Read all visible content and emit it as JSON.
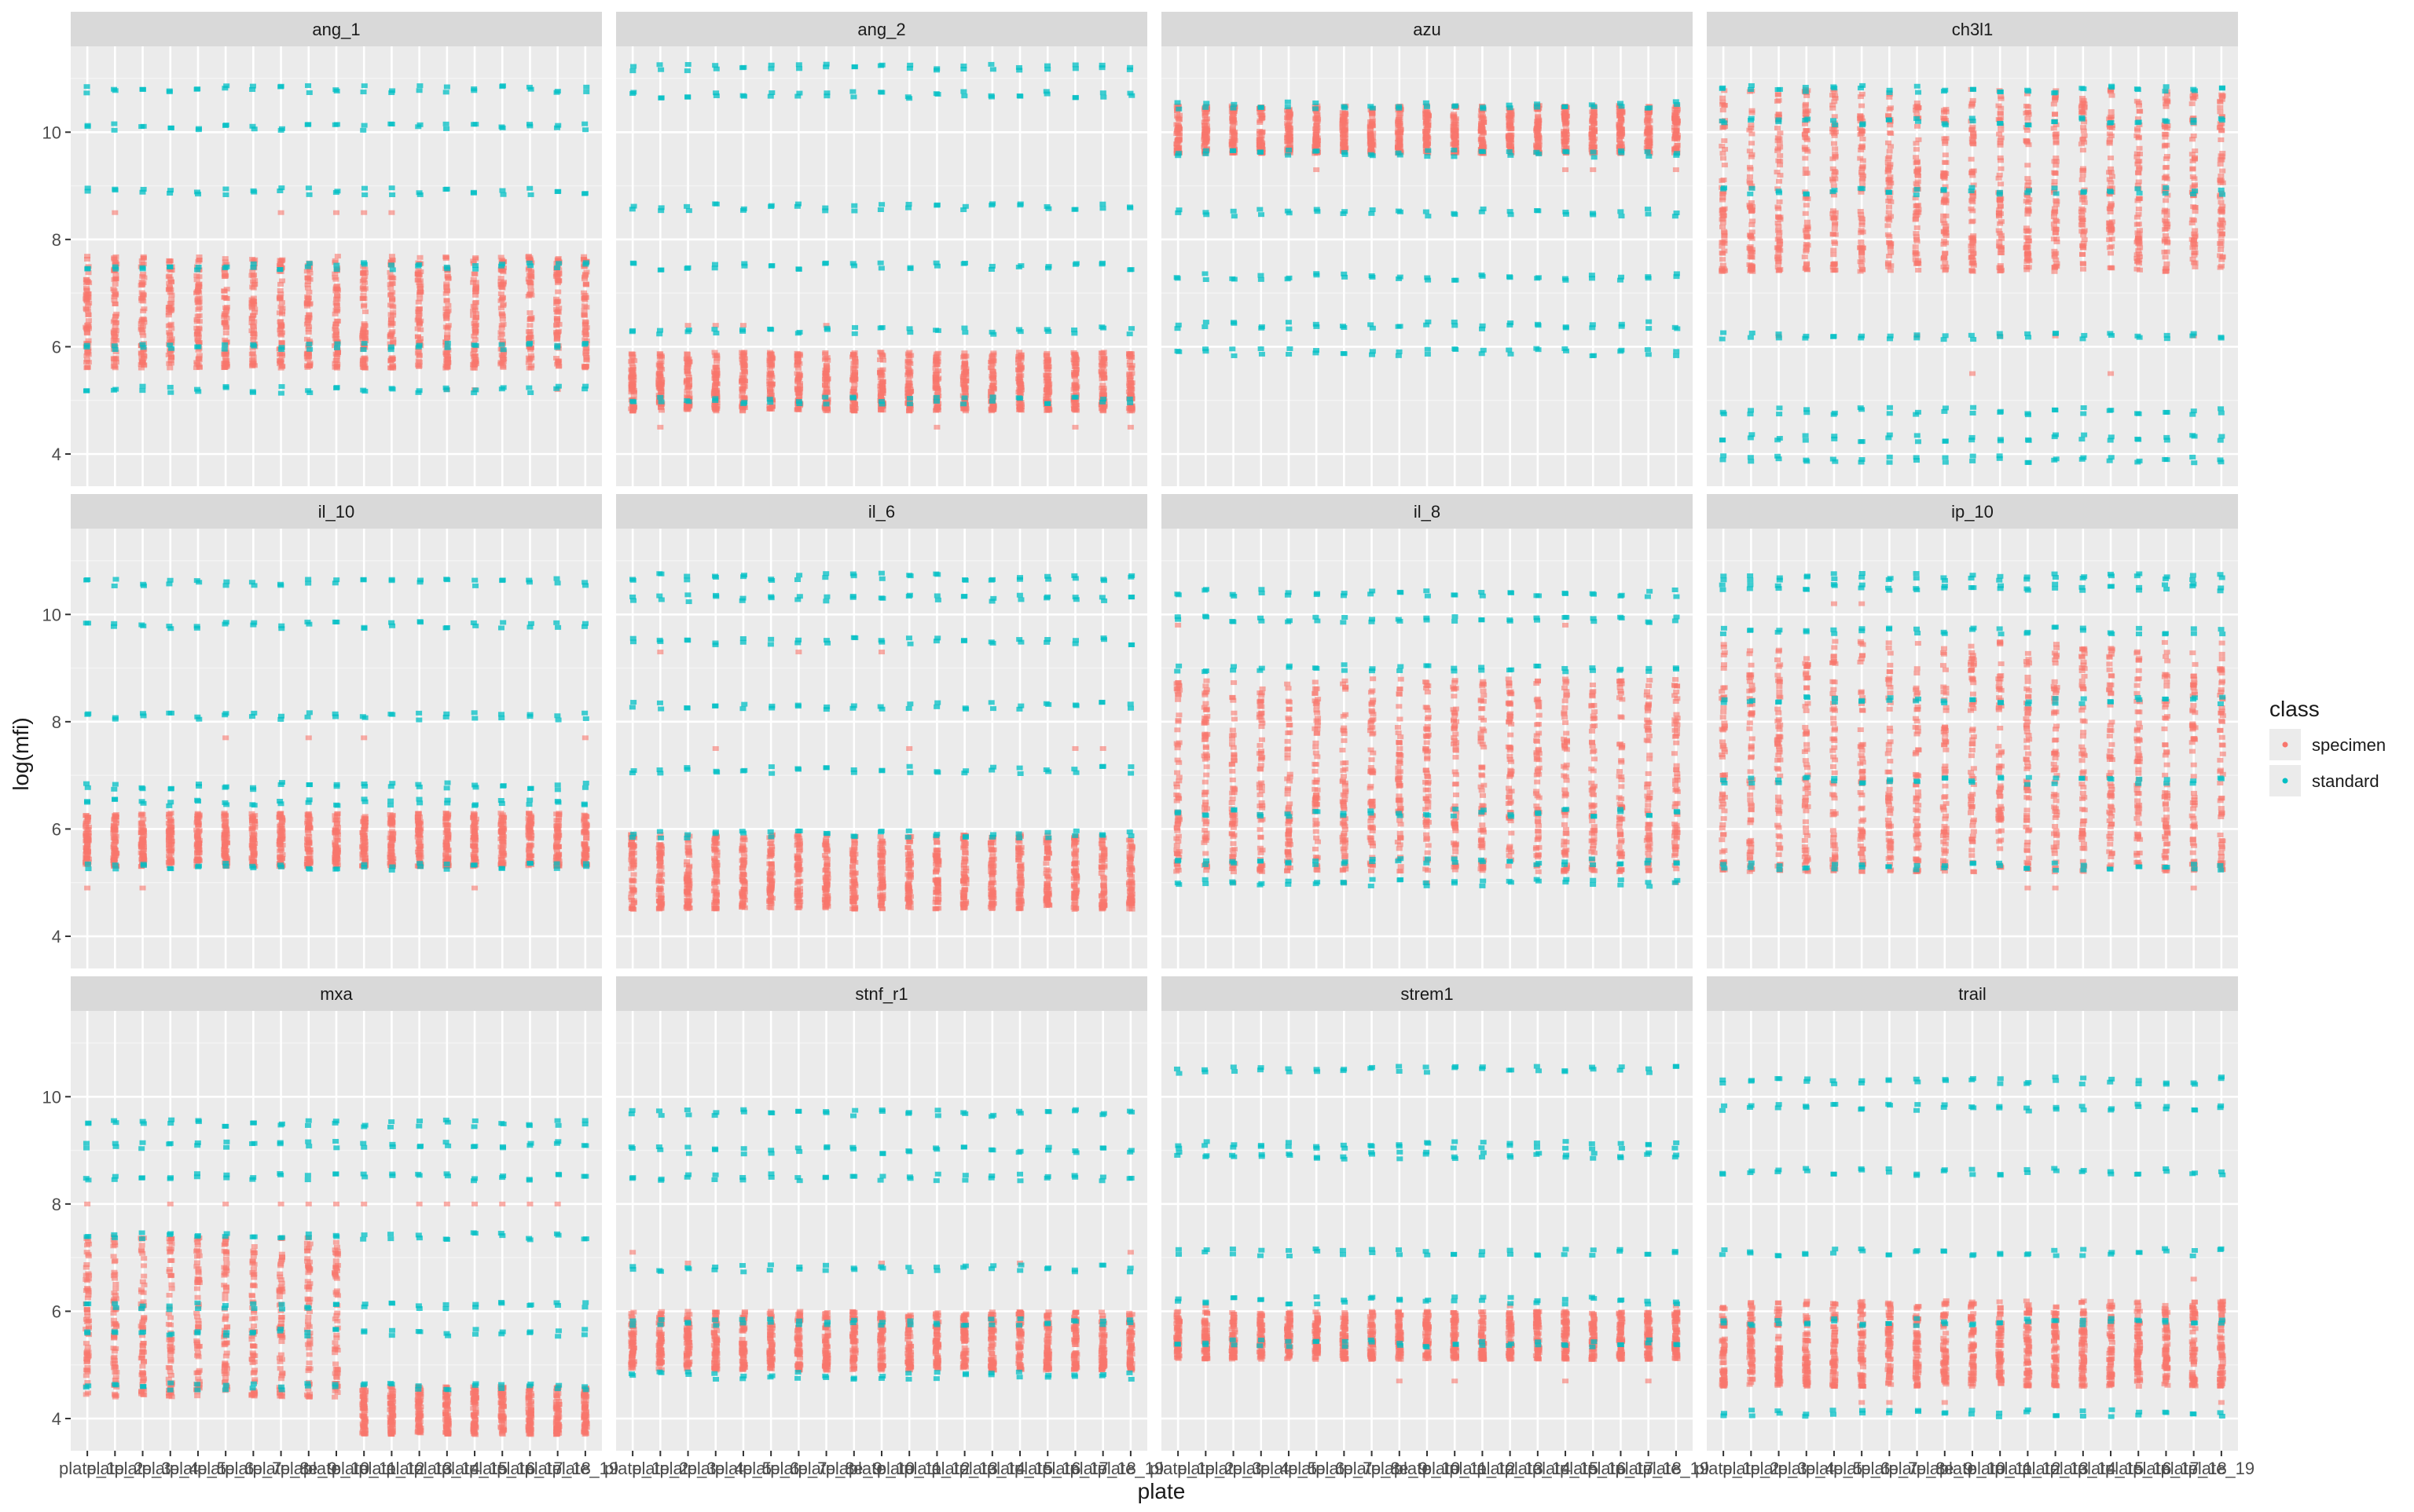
{
  "chart_data": {
    "type": "scatter",
    "xlabel": "plate",
    "ylabel": "log(mfi)",
    "yticks": [
      4,
      6,
      8,
      10
    ],
    "ylim": [
      3.4,
      11.6
    ],
    "plates": [
      "plate_1",
      "plate_2",
      "plate_3",
      "plate_4",
      "plate_5",
      "plate_6",
      "plate_7",
      "plate_8",
      "plate_9",
      "plate_10",
      "plate_11",
      "plate_12",
      "plate_13",
      "plate_14",
      "plate_15",
      "plate_16",
      "plate_17",
      "plate_18",
      "plate_19"
    ],
    "legend": {
      "title": "class",
      "position": "right",
      "entries": [
        {
          "label": "specimen",
          "color": "#F8766D"
        },
        {
          "label": "standard",
          "color": "#00BFC4"
        }
      ]
    },
    "panel_background": "#EBEBEB",
    "strip_background": "#D9D9D9",
    "grid": true,
    "panels": [
      {
        "name": "ang_1",
        "specimen_range": [
          5.6,
          7.7
        ],
        "specimen_outliers": [
          8.5,
          5.2
        ],
        "standard_levels": [
          10.8,
          10.1,
          8.9,
          7.5,
          6.0,
          5.2
        ]
      },
      {
        "name": "ang_2",
        "specimen_range": [
          4.8,
          5.9
        ],
        "specimen_outliers": [
          6.4,
          4.5
        ],
        "standard_levels": [
          11.2,
          10.7,
          8.6,
          7.5,
          6.3,
          5.0
        ]
      },
      {
        "name": "azu",
        "specimen_range": [
          9.6,
          10.5
        ],
        "specimen_outliers": [
          9.3
        ],
        "standard_levels": [
          10.5,
          9.6,
          8.5,
          7.3,
          6.4,
          5.9
        ]
      },
      {
        "name": "ch3l1",
        "specimen_range": [
          7.4,
          10.8
        ],
        "specimen_outliers": [
          6.2,
          5.5
        ],
        "standard_levels": [
          10.8,
          10.2,
          8.9,
          6.2,
          4.8,
          4.3,
          3.9
        ]
      },
      {
        "name": "il_10",
        "specimen_range": [
          5.3,
          6.3
        ],
        "specimen_outliers": [
          7.7,
          4.9
        ],
        "standard_levels": [
          10.6,
          9.8,
          8.1,
          6.8,
          6.5,
          5.3
        ]
      },
      {
        "name": "il_6",
        "specimen_range": [
          4.5,
          5.9
        ],
        "specimen_outliers": [
          7.5,
          9.3
        ],
        "standard_levels": [
          10.7,
          10.3,
          9.5,
          8.3,
          7.1,
          5.9
        ]
      },
      {
        "name": "il_8",
        "specimen_range": [
          5.2,
          8.8
        ],
        "specimen_outliers": [
          9.8,
          5.0
        ],
        "standard_levels": [
          10.4,
          9.9,
          9.0,
          6.3,
          5.4,
          5.0
        ]
      },
      {
        "name": "ip_10",
        "specimen_range": [
          5.2,
          9.5
        ],
        "specimen_outliers": [
          10.2,
          4.9
        ],
        "standard_levels": [
          10.7,
          10.5,
          9.7,
          8.4,
          6.9,
          5.3
        ]
      },
      {
        "name": "mxa",
        "specimen_range": [
          4.4,
          7.4
        ],
        "specimen_outliers": [
          8.0
        ],
        "specimen_range_later": [
          3.7,
          4.6
        ],
        "standard_levels": [
          9.5,
          9.1,
          8.5,
          7.4,
          6.1,
          5.6,
          4.6
        ]
      },
      {
        "name": "stnf_r1",
        "specimen_range": [
          4.9,
          6.0
        ],
        "specimen_outliers": [
          6.9,
          7.1
        ],
        "standard_levels": [
          9.7,
          9.0,
          8.5,
          6.8,
          5.8,
          4.8
        ]
      },
      {
        "name": "strem1",
        "specimen_range": [
          5.1,
          6.0
        ],
        "specimen_outliers": [
          6.1,
          4.7
        ],
        "standard_levels": [
          10.5,
          9.1,
          8.9,
          7.1,
          6.2,
          5.4
        ]
      },
      {
        "name": "trail",
        "specimen_range": [
          4.6,
          6.2
        ],
        "specimen_outliers": [
          6.6,
          4.3
        ],
        "standard_levels": [
          10.3,
          9.8,
          8.6,
          7.1,
          5.8,
          4.1
        ]
      }
    ]
  }
}
